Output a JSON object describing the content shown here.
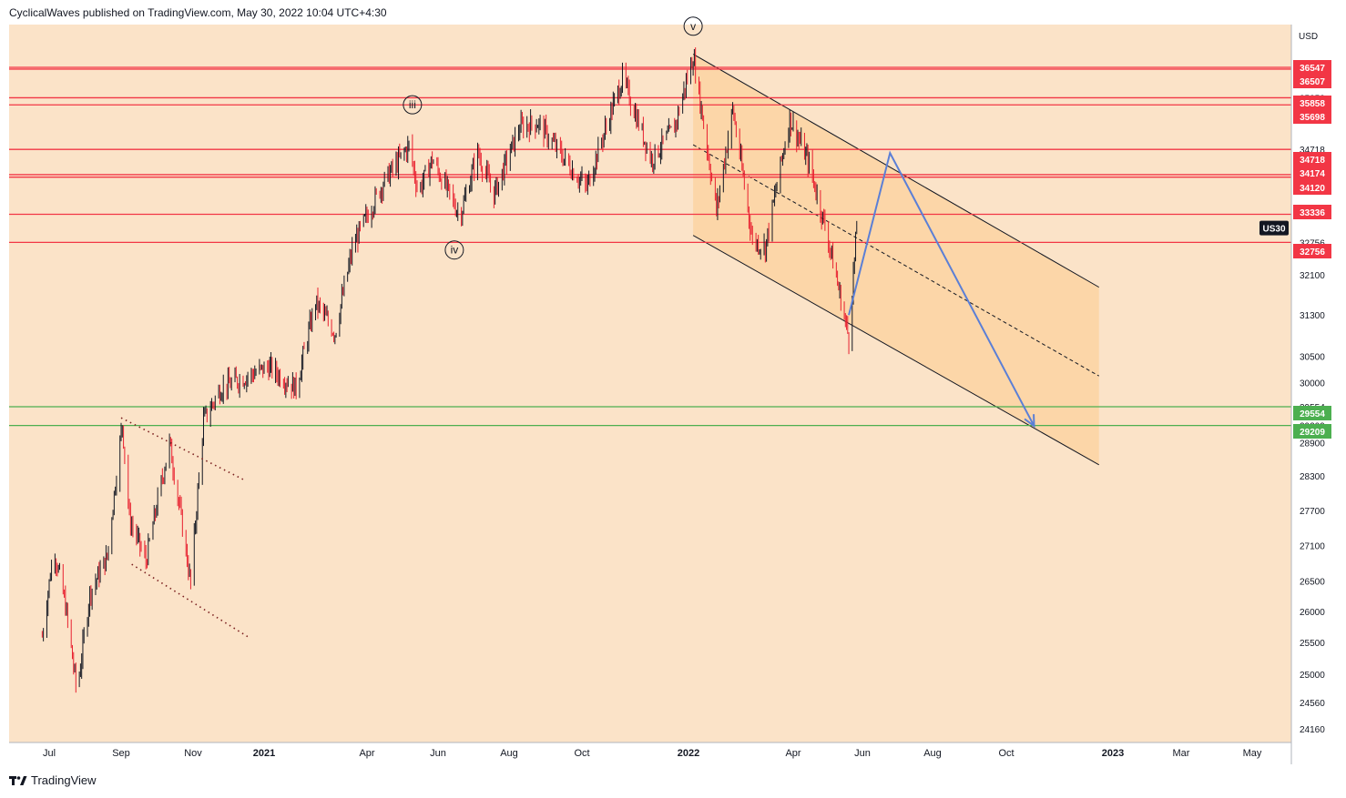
{
  "header": {
    "text": "CyclicalWaves published on TradingView.com, May 30, 2022 10:04 UTC+4:30"
  },
  "footer": {
    "brand": "TradingView",
    "logo_icon": "tradingview-logo-icon"
  },
  "colors": {
    "background": "#fbe3c8",
    "channel_fill": "#fcd3a2",
    "resistance": "#f23645",
    "support": "#4caf50",
    "projection": "#5b7fd6",
    "candle": "#131722",
    "candle_down": "#e8202f",
    "axis_text": "#131722"
  },
  "chart_data": {
    "type": "candlestick",
    "symbol": "US30",
    "currency": "USD",
    "y_ticks": [
      24160,
      24560,
      25000,
      25500,
      26000,
      26500,
      27100,
      27700,
      28300,
      28900,
      29209,
      29554,
      30000,
      30500,
      31300,
      32100,
      32756,
      33336,
      34120,
      34174,
      34718,
      35698,
      35858,
      36507,
      36547
    ],
    "price_labels": [
      {
        "value": "36547",
        "color": "#f23645"
      },
      {
        "value": "36507",
        "color": "#f23645"
      },
      {
        "value": "35858",
        "color": "#f23645"
      },
      {
        "value": "35698",
        "color": "#f23645"
      },
      {
        "value": "34718",
        "color": "#f23645"
      },
      {
        "value": "34174",
        "color": "#f23645"
      },
      {
        "value": "34120",
        "color": "#f23645"
      },
      {
        "value": "33336",
        "color": "#f23645"
      },
      {
        "value": "32756",
        "color": "#f23645"
      },
      {
        "value": "29554",
        "color": "#4caf50"
      },
      {
        "value": "29209",
        "color": "#4caf50"
      }
    ],
    "x_ticks": [
      {
        "label": "Jul",
        "date": "2020-07-01",
        "bold": false
      },
      {
        "label": "Sep",
        "date": "2020-09-01",
        "bold": false
      },
      {
        "label": "Nov",
        "date": "2020-11-01",
        "bold": false
      },
      {
        "label": "2021",
        "date": "2021-01-01",
        "bold": true
      },
      {
        "label": "Apr",
        "date": "2021-04-01",
        "bold": false
      },
      {
        "label": "Jun",
        "date": "2021-06-01",
        "bold": false
      },
      {
        "label": "Aug",
        "date": "2021-08-01",
        "bold": false
      },
      {
        "label": "Oct",
        "date": "2021-10-01",
        "bold": false
      },
      {
        "label": "2022",
        "date": "2022-01-01",
        "bold": true
      },
      {
        "label": "Apr",
        "date": "2022-04-01",
        "bold": false
      },
      {
        "label": "Jun",
        "date": "2022-06-01",
        "bold": false
      },
      {
        "label": "Aug",
        "date": "2022-08-01",
        "bold": false
      },
      {
        "label": "Oct",
        "date": "2022-10-01",
        "bold": false
      },
      {
        "label": "2023",
        "date": "2023-01-01",
        "bold": true
      },
      {
        "label": "Mar",
        "date": "2023-03-01",
        "bold": false
      },
      {
        "label": "May",
        "date": "2023-05-01",
        "bold": false
      }
    ],
    "horizontal_levels": [
      {
        "value": 36547,
        "color": "#f23645"
      },
      {
        "value": 36507,
        "color": "#f23645"
      },
      {
        "value": 35858,
        "color": "#f23645"
      },
      {
        "value": 35698,
        "color": "#f23645"
      },
      {
        "value": 34718,
        "color": "#f23645"
      },
      {
        "value": 34174,
        "color": "#f23645"
      },
      {
        "value": 34120,
        "color": "#f23645"
      },
      {
        "value": 33336,
        "color": "#f23645"
      },
      {
        "value": 32756,
        "color": "#f23645"
      },
      {
        "value": 29554,
        "color": "#4caf50"
      },
      {
        "value": 29209,
        "color": "#4caf50"
      }
    ],
    "wave_labels": [
      {
        "label": "iii",
        "date": "2021-05-10",
        "price": 35700
      },
      {
        "label": "iv",
        "date": "2021-06-15",
        "price": 32600
      },
      {
        "label": "v",
        "date": "2022-01-05",
        "price": 37500
      }
    ],
    "descending_channel": {
      "upper_start": {
        "date": "2022-01-05",
        "price": 36850
      },
      "upper_end": {
        "date": "2022-12-20",
        "price": 31850
      },
      "lower_start": {
        "date": "2022-01-05",
        "price": 32900
      },
      "lower_end": {
        "date": "2022-12-20",
        "price": 28500
      }
    },
    "falling_wedge": {
      "upper_start": {
        "date": "2020-09-01",
        "price": 29350
      },
      "upper_end": {
        "date": "2020-12-15",
        "price": 28230
      },
      "lower_start": {
        "date": "2020-09-10",
        "price": 26780
      },
      "lower_end": {
        "date": "2020-12-20",
        "price": 25570
      }
    },
    "projection_path": [
      {
        "date": "2022-05-20",
        "price": 31300
      },
      {
        "date": "2022-06-25",
        "price": 34640
      },
      {
        "date": "2022-10-25",
        "price": 29200
      }
    ],
    "last_price": {
      "date": "2022-05-27",
      "price": 33050
    },
    "series_key_points": [
      {
        "date": "2020-06-25",
        "price": 25600
      },
      {
        "date": "2020-07-05",
        "price": 27050
      },
      {
        "date": "2020-07-15",
        "price": 26100
      },
      {
        "date": "2020-07-25",
        "price": 24700
      },
      {
        "date": "2020-08-05",
        "price": 26300
      },
      {
        "date": "2020-08-20",
        "price": 26900
      },
      {
        "date": "2020-09-02",
        "price": 29250
      },
      {
        "date": "2020-09-08",
        "price": 27550
      },
      {
        "date": "2020-09-22",
        "price": 26830
      },
      {
        "date": "2020-10-12",
        "price": 28900
      },
      {
        "date": "2020-10-30",
        "price": 26450
      },
      {
        "date": "2020-11-10",
        "price": 29300
      },
      {
        "date": "2020-11-25",
        "price": 29900
      },
      {
        "date": "2020-12-15",
        "price": 30100
      },
      {
        "date": "2021-01-05",
        "price": 30300
      },
      {
        "date": "2021-01-29",
        "price": 29900
      },
      {
        "date": "2021-02-15",
        "price": 31550
      },
      {
        "date": "2021-03-04",
        "price": 30950
      },
      {
        "date": "2021-03-20",
        "price": 32700
      },
      {
        "date": "2021-04-15",
        "price": 34000
      },
      {
        "date": "2021-05-07",
        "price": 34800
      },
      {
        "date": "2021-05-15",
        "price": 33800
      },
      {
        "date": "2021-05-27",
        "price": 34500
      },
      {
        "date": "2021-06-20",
        "price": 33300
      },
      {
        "date": "2021-07-05",
        "price": 34650
      },
      {
        "date": "2021-07-19",
        "price": 33750
      },
      {
        "date": "2021-08-10",
        "price": 35200
      },
      {
        "date": "2021-08-25",
        "price": 35300
      },
      {
        "date": "2021-09-25",
        "price": 34200
      },
      {
        "date": "2021-10-05",
        "price": 33900
      },
      {
        "date": "2021-11-05",
        "price": 36300
      },
      {
        "date": "2021-11-30",
        "price": 34500
      },
      {
        "date": "2021-12-20",
        "price": 35200
      },
      {
        "date": "2022-01-05",
        "price": 36800
      },
      {
        "date": "2022-01-25",
        "price": 33400
      },
      {
        "date": "2022-02-08",
        "price": 35600
      },
      {
        "date": "2022-02-25",
        "price": 32800
      },
      {
        "date": "2022-03-08",
        "price": 32650
      },
      {
        "date": "2022-03-29",
        "price": 35400
      },
      {
        "date": "2022-04-15",
        "price": 34400
      },
      {
        "date": "2022-05-02",
        "price": 32800
      },
      {
        "date": "2022-05-13",
        "price": 31600
      },
      {
        "date": "2022-05-20",
        "price": 30850
      },
      {
        "date": "2022-05-27",
        "price": 33050
      }
    ]
  }
}
